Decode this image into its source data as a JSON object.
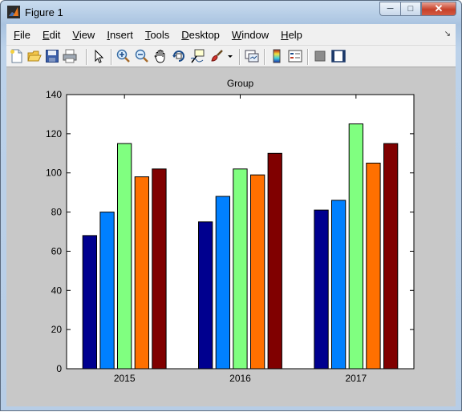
{
  "window": {
    "title": "Figure 1"
  },
  "menu": {
    "items": [
      {
        "name": "menu-file",
        "label": "File",
        "u": "F",
        "rest": "ile"
      },
      {
        "name": "menu-edit",
        "label": "Edit",
        "u": "E",
        "rest": "dit"
      },
      {
        "name": "menu-view",
        "label": "View",
        "u": "V",
        "rest": "iew"
      },
      {
        "name": "menu-insert",
        "label": "Insert",
        "u": "I",
        "rest": "nsert"
      },
      {
        "name": "menu-tools",
        "label": "Tools",
        "u": "T",
        "rest": "ools"
      },
      {
        "name": "menu-desktop",
        "label": "Desktop",
        "u": "D",
        "rest": "esktop"
      },
      {
        "name": "menu-window",
        "label": "Window",
        "u": "W",
        "rest": "indow"
      },
      {
        "name": "menu-help",
        "label": "Help",
        "u": "H",
        "rest": "elp"
      }
    ]
  },
  "toolbar": {
    "icons": [
      "new-figure-icon",
      "open-file-icon",
      "save-icon",
      "print-icon",
      "edit-plot-icon",
      "zoom-in-icon",
      "zoom-out-icon",
      "pan-icon",
      "rotate-3d-icon",
      "data-cursor-icon",
      "brush-icon",
      "brush-dropdown-icon",
      "link-plot-icon",
      "insert-colorbar-icon",
      "insert-legend-icon",
      "hide-plot-tools-icon",
      "show-plot-tools-icon"
    ]
  },
  "chart_data": {
    "type": "bar",
    "title": "Group",
    "xlabel": "",
    "ylabel": "",
    "categories": [
      "2015",
      "2016",
      "2017"
    ],
    "ylim": [
      0,
      140
    ],
    "yticks": [
      0,
      20,
      40,
      60,
      80,
      100,
      120,
      140
    ],
    "grid": false,
    "legend": "none",
    "series": [
      {
        "color": "#00008f",
        "values": [
          68,
          75,
          81
        ]
      },
      {
        "color": "#0080ff",
        "values": [
          80,
          88,
          86
        ]
      },
      {
        "color": "#80ff80",
        "values": [
          115,
          102,
          125
        ]
      },
      {
        "color": "#ff7000",
        "values": [
          98,
          99,
          105
        ]
      },
      {
        "color": "#800000",
        "values": [
          102,
          110,
          115
        ]
      }
    ]
  }
}
